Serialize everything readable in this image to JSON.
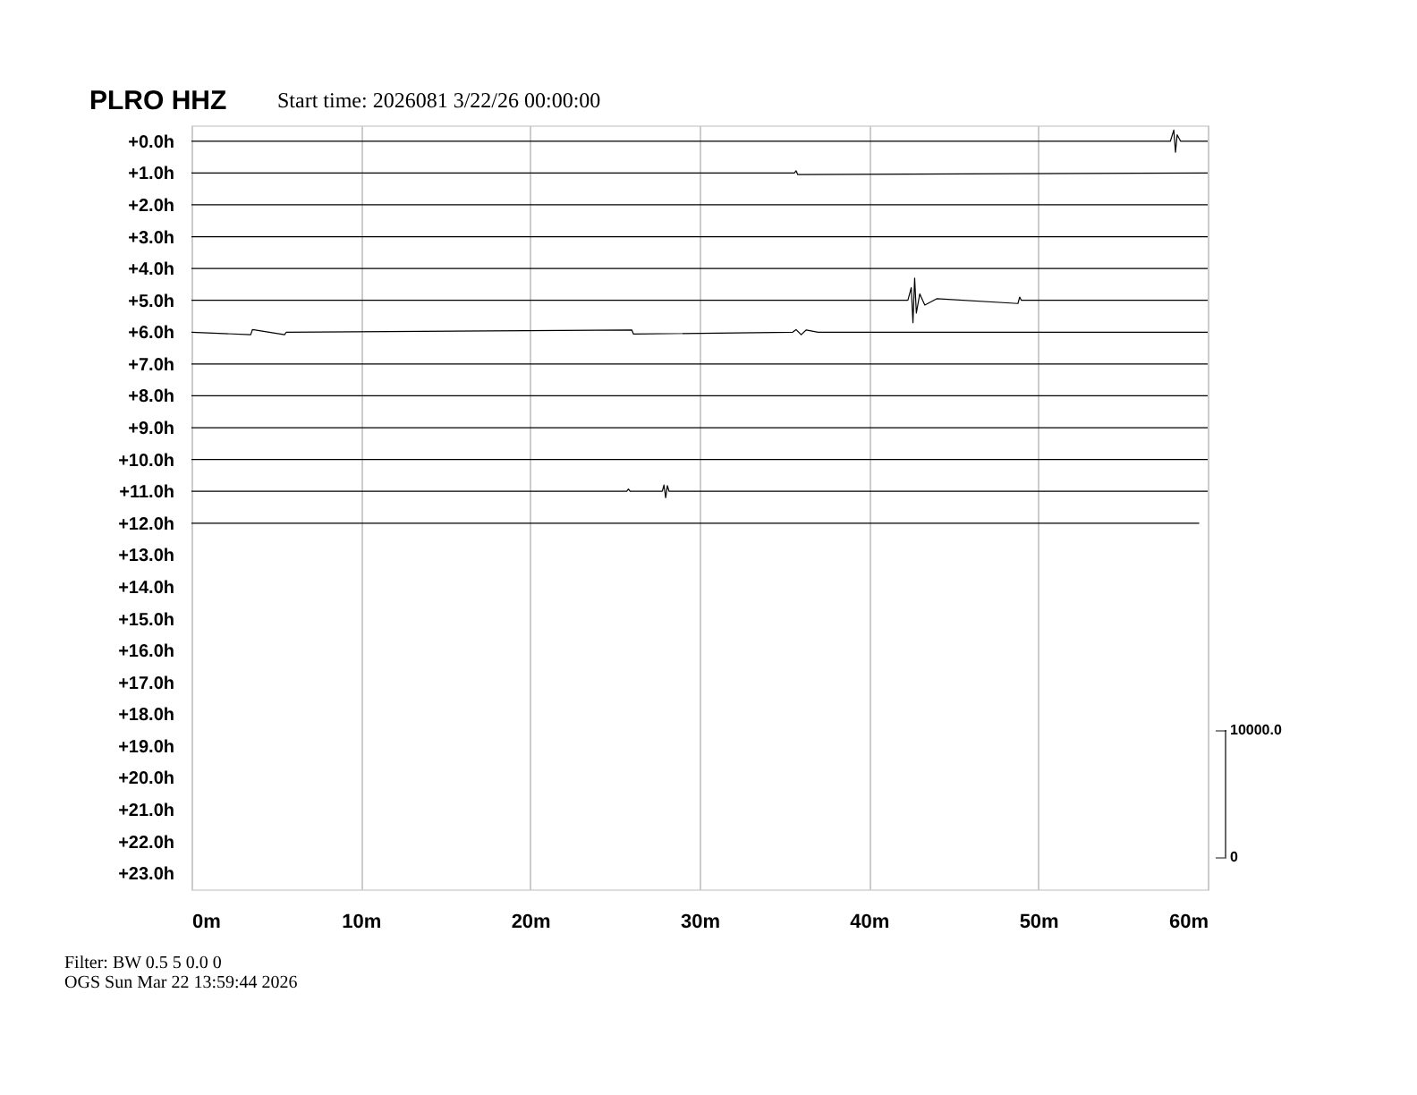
{
  "chart_data": {
    "type": "line",
    "title": "PLRO HHZ",
    "subtitle": "Start time: 2026081  3/22/26 00:00:00",
    "annotations": [
      "Filter: BW 0.5 5 0.0 0",
      "OGS    Sun Mar 22 13:59:44 2026"
    ],
    "xlim": [
      0,
      60
    ],
    "xticks": [
      {
        "value": 0,
        "label": "0m"
      },
      {
        "value": 10,
        "label": "10m"
      },
      {
        "value": 20,
        "label": "20m"
      },
      {
        "value": 30,
        "label": "30m"
      },
      {
        "value": 40,
        "label": "40m"
      },
      {
        "value": 50,
        "label": "50m"
      },
      {
        "value": 60,
        "label": "60m"
      }
    ],
    "ylim": [
      -23.5,
      0.5
    ],
    "yticks": [
      {
        "value": 0,
        "label": "+0.0h"
      },
      {
        "value": -1,
        "label": "+1.0h"
      },
      {
        "value": -2,
        "label": "+2.0h"
      },
      {
        "value": -3,
        "label": "+3.0h"
      },
      {
        "value": -4,
        "label": "+4.0h"
      },
      {
        "value": -5,
        "label": "+5.0h"
      },
      {
        "value": -6,
        "label": "+6.0h"
      },
      {
        "value": -7,
        "label": "+7.0h"
      },
      {
        "value": -8,
        "label": "+8.0h"
      },
      {
        "value": -9,
        "label": "+9.0h"
      },
      {
        "value": -10,
        "label": "+10.0h"
      },
      {
        "value": -11,
        "label": "+11.0h"
      },
      {
        "value": -12,
        "label": "+12.0h"
      },
      {
        "value": -13,
        "label": "+13.0h"
      },
      {
        "value": -14,
        "label": "+14.0h"
      },
      {
        "value": -15,
        "label": "+15.0h"
      },
      {
        "value": -16,
        "label": "+16.0h"
      },
      {
        "value": -17,
        "label": "+17.0h"
      },
      {
        "value": -18,
        "label": "+18.0h"
      },
      {
        "value": -19,
        "label": "+19.0h"
      },
      {
        "value": -20,
        "label": "+20.0h"
      },
      {
        "value": -21,
        "label": "+21.0h"
      },
      {
        "value": -22,
        "label": "+22.0h"
      },
      {
        "value": -23,
        "label": "+23.0h"
      }
    ],
    "y2lim": [
      -2500,
      57500
    ],
    "y2ticks": [
      0,
      {
        "value": 10000,
        "label": "10000.0"
      }
    ],
    "grid": "x",
    "legend": false,
    "line_style": "solid",
    "marker": "none",
    "series": [
      {
        "color": "#000000",
        "x": [
          0,
          57.8,
          58.0,
          58.1,
          58.2,
          58.4,
          60
        ],
        "values": [
          0,
          0,
          0.35,
          -0.35,
          0.2,
          0,
          0
        ]
      },
      {
        "color": "#000000",
        "x": [
          0,
          35.6,
          35.7,
          35.8,
          60
        ],
        "values": [
          -1,
          -1,
          -0.93,
          -1.05,
          -1
        ]
      },
      {
        "color": "#000000",
        "x": [
          0,
          60
        ],
        "values": [
          -2,
          -2
        ]
      },
      {
        "color": "#000000",
        "x": [
          0,
          60
        ],
        "values": [
          -3,
          -3
        ]
      },
      {
        "color": "#000000",
        "x": [
          0,
          60
        ],
        "values": [
          -4,
          -4
        ]
      },
      {
        "color": "#000000",
        "x": [
          0,
          42.3,
          42.5,
          42.6,
          42.7,
          42.8,
          43.0,
          43.3,
          44,
          48.8,
          48.9,
          49,
          60
        ],
        "values": [
          -5,
          -5,
          -4.6,
          -5.7,
          -4.3,
          -5.4,
          -4.8,
          -5.15,
          -4.95,
          -5.1,
          -4.9,
          -5,
          -5
        ]
      },
      {
        "color": "#000000",
        "x": [
          0,
          3.5,
          3.6,
          5.5,
          5.6,
          26,
          26.1,
          35.5,
          35.7,
          36,
          36.3,
          37,
          60
        ],
        "values": [
          -6,
          -6.08,
          -5.92,
          -6.08,
          -6,
          -5.93,
          -6.06,
          -6,
          -5.92,
          -6.08,
          -5.93,
          -6,
          -6
        ]
      },
      {
        "color": "#000000",
        "x": [
          0,
          60
        ],
        "values": [
          -7,
          -7
        ]
      },
      {
        "color": "#000000",
        "x": [
          0,
          60
        ],
        "values": [
          -8,
          -8
        ]
      },
      {
        "color": "#000000",
        "x": [
          0,
          60
        ],
        "values": [
          -9,
          -9
        ]
      },
      {
        "color": "#000000",
        "x": [
          0,
          60
        ],
        "values": [
          -10,
          -10
        ]
      },
      {
        "color": "#000000",
        "x": [
          0,
          25.7,
          25.8,
          25.9,
          27.8,
          27.9,
          28.0,
          28.1,
          28.2,
          60
        ],
        "values": [
          -11,
          -11,
          -10.93,
          -11,
          -11,
          -10.8,
          -11.2,
          -10.82,
          -11,
          -11
        ]
      },
      {
        "color": "#000000",
        "x": [
          0,
          59.5
        ],
        "values": [
          -12,
          -12
        ]
      }
    ]
  }
}
